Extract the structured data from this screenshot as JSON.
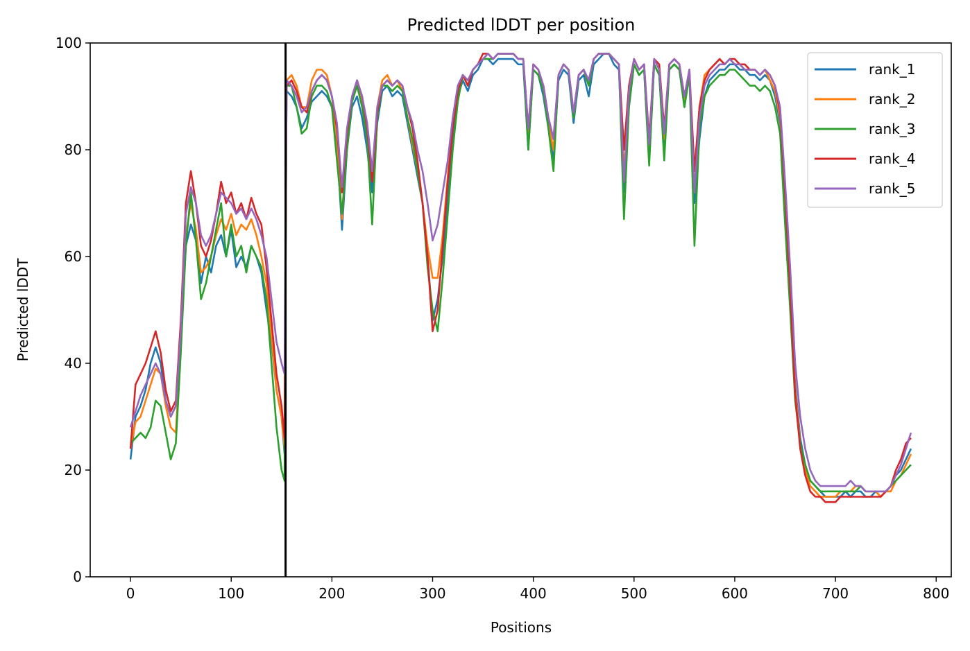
{
  "chart_data": {
    "type": "line",
    "title": "Predicted lDDT per position",
    "xlabel": "Positions",
    "ylabel": "Predicted lDDT",
    "xlim": [
      -40,
      815
    ],
    "ylim": [
      0,
      100
    ],
    "xticks": [
      0,
      100,
      200,
      300,
      400,
      500,
      600,
      700,
      800
    ],
    "yticks": [
      0,
      20,
      40,
      60,
      80,
      100
    ],
    "grid": false,
    "legend_position": "top-right",
    "chain_break_x": 154,
    "x": [
      0,
      5,
      10,
      15,
      20,
      25,
      30,
      35,
      40,
      45,
      50,
      55,
      60,
      65,
      70,
      75,
      80,
      85,
      90,
      95,
      100,
      105,
      110,
      115,
      120,
      125,
      130,
      135,
      140,
      145,
      150,
      153,
      155,
      160,
      165,
      170,
      175,
      180,
      185,
      190,
      195,
      200,
      205,
      210,
      215,
      220,
      225,
      230,
      235,
      240,
      245,
      250,
      255,
      260,
      265,
      270,
      275,
      280,
      285,
      290,
      295,
      300,
      305,
      310,
      315,
      320,
      325,
      330,
      335,
      340,
      345,
      350,
      355,
      360,
      365,
      370,
      375,
      380,
      385,
      390,
      395,
      400,
      405,
      410,
      415,
      420,
      425,
      430,
      435,
      440,
      445,
      450,
      455,
      460,
      465,
      470,
      475,
      480,
      485,
      490,
      495,
      500,
      505,
      510,
      515,
      520,
      525,
      530,
      535,
      540,
      545,
      550,
      555,
      560,
      565,
      570,
      575,
      580,
      585,
      590,
      595,
      600,
      605,
      610,
      615,
      620,
      625,
      630,
      635,
      640,
      645,
      650,
      655,
      660,
      665,
      670,
      675,
      680,
      685,
      690,
      695,
      700,
      705,
      710,
      715,
      720,
      725,
      730,
      735,
      740,
      745,
      750,
      755,
      760,
      765,
      770,
      775
    ],
    "series": [
      {
        "name": "rank_1",
        "color": "#1f77b4",
        "values": [
          22,
          30,
          32,
          35,
          40,
          43,
          40,
          33,
          30,
          32,
          45,
          62,
          66,
          63,
          55,
          60,
          57,
          62,
          64,
          60,
          65,
          58,
          60,
          58,
          62,
          60,
          57,
          50,
          44,
          35,
          30,
          23,
          91,
          90,
          88,
          84,
          86,
          89,
          90,
          91,
          90,
          88,
          81,
          65,
          80,
          88,
          90,
          86,
          80,
          72,
          85,
          91,
          92,
          90,
          91,
          90,
          85,
          80,
          75,
          70,
          60,
          48,
          52,
          60,
          70,
          82,
          90,
          93,
          91,
          94,
          95,
          97,
          97,
          96,
          97,
          97,
          97,
          97,
          96,
          96,
          80,
          95,
          94,
          90,
          84,
          78,
          93,
          95,
          94,
          85,
          93,
          94,
          90,
          96,
          97,
          98,
          98,
          96,
          95,
          72,
          88,
          96,
          94,
          95,
          78,
          96,
          94,
          80,
          95,
          96,
          95,
          88,
          94,
          70,
          82,
          90,
          93,
          94,
          95,
          95,
          96,
          96,
          95,
          95,
          94,
          94,
          93,
          94,
          93,
          90,
          85,
          70,
          55,
          36,
          26,
          21,
          18,
          17,
          16,
          15,
          15,
          15,
          15,
          16,
          15,
          16,
          16,
          15,
          15,
          16,
          15,
          16,
          17,
          19,
          20,
          22,
          24
        ]
      },
      {
        "name": "rank_2",
        "color": "#ff7f0e",
        "values": [
          24,
          29,
          30,
          33,
          36,
          39,
          38,
          32,
          28,
          27,
          44,
          64,
          70,
          65,
          57,
          58,
          60,
          64,
          67,
          65,
          68,
          64,
          66,
          65,
          67,
          64,
          60,
          55,
          45,
          35,
          30,
          24,
          93,
          94,
          92,
          88,
          88,
          93,
          95,
          95,
          94,
          90,
          82,
          67,
          82,
          90,
          93,
          89,
          83,
          75,
          88,
          93,
          94,
          92,
          93,
          91,
          86,
          81,
          76,
          70,
          62,
          56,
          56,
          64,
          75,
          85,
          91,
          94,
          93,
          95,
          96,
          97,
          98,
          97,
          98,
          98,
          98,
          98,
          97,
          97,
          82,
          96,
          95,
          91,
          85,
          80,
          94,
          96,
          95,
          86,
          94,
          95,
          92,
          97,
          98,
          98,
          98,
          97,
          96,
          76,
          90,
          97,
          95,
          96,
          80,
          97,
          95,
          82,
          96,
          97,
          96,
          89,
          95,
          72,
          88,
          94,
          95,
          96,
          97,
          96,
          97,
          96,
          96,
          95,
          95,
          95,
          94,
          95,
          93,
          91,
          86,
          72,
          55,
          35,
          25,
          20,
          17,
          16,
          15,
          15,
          15,
          15,
          16,
          16,
          16,
          17,
          17,
          16,
          16,
          16,
          15,
          16,
          16,
          18,
          19,
          21,
          23
        ]
      },
      {
        "name": "rank_3",
        "color": "#2ca02c",
        "values": [
          25,
          26,
          27,
          26,
          28,
          33,
          32,
          27,
          22,
          25,
          42,
          62,
          72,
          63,
          52,
          55,
          60,
          65,
          70,
          60,
          66,
          60,
          62,
          57,
          62,
          60,
          58,
          52,
          40,
          28,
          20,
          18,
          92,
          92,
          88,
          83,
          84,
          90,
          92,
          92,
          91,
          88,
          78,
          68,
          80,
          89,
          92,
          88,
          82,
          66,
          86,
          92,
          92,
          91,
          92,
          91,
          86,
          82,
          76,
          70,
          58,
          50,
          46,
          56,
          68,
          80,
          89,
          94,
          92,
          95,
          96,
          97,
          97,
          97,
          98,
          98,
          98,
          98,
          97,
          97,
          80,
          95,
          94,
          91,
          84,
          76,
          94,
          96,
          95,
          86,
          94,
          95,
          92,
          97,
          98,
          98,
          98,
          97,
          96,
          67,
          88,
          96,
          94,
          95,
          77,
          96,
          94,
          78,
          95,
          96,
          95,
          88,
          94,
          62,
          84,
          90,
          92,
          93,
          94,
          94,
          95,
          95,
          94,
          93,
          92,
          92,
          91,
          92,
          91,
          88,
          83,
          66,
          50,
          33,
          25,
          21,
          18,
          17,
          16,
          16,
          16,
          16,
          16,
          16,
          16,
          16,
          17,
          16,
          16,
          16,
          16,
          16,
          17,
          18,
          19,
          20,
          21
        ]
      },
      {
        "name": "rank_4",
        "color": "#d62728",
        "values": [
          24,
          36,
          38,
          40,
          43,
          46,
          42,
          35,
          31,
          33,
          48,
          70,
          76,
          70,
          62,
          60,
          63,
          68,
          74,
          70,
          72,
          68,
          70,
          67,
          71,
          68,
          66,
          58,
          48,
          38,
          32,
          26,
          92,
          93,
          91,
          88,
          87,
          91,
          93,
          94,
          93,
          90,
          84,
          72,
          83,
          90,
          93,
          90,
          84,
          74,
          87,
          92,
          93,
          92,
          93,
          92,
          88,
          84,
          78,
          70,
          60,
          46,
          50,
          62,
          74,
          84,
          91,
          94,
          92,
          95,
          96,
          98,
          98,
          97,
          98,
          98,
          98,
          98,
          97,
          97,
          84,
          96,
          95,
          92,
          86,
          82,
          94,
          96,
          95,
          87,
          94,
          95,
          93,
          97,
          98,
          98,
          98,
          97,
          96,
          80,
          92,
          97,
          95,
          96,
          82,
          97,
          96,
          84,
          96,
          97,
          96,
          90,
          95,
          76,
          88,
          93,
          95,
          96,
          97,
          96,
          97,
          97,
          96,
          96,
          95,
          95,
          94,
          95,
          94,
          92,
          87,
          72,
          54,
          34,
          24,
          19,
          16,
          15,
          15,
          14,
          14,
          14,
          15,
          15,
          15,
          15,
          15,
          15,
          15,
          15,
          15,
          16,
          17,
          20,
          22,
          25,
          26
        ]
      },
      {
        "name": "rank_5",
        "color": "#9467bd",
        "values": [
          28,
          31,
          34,
          36,
          38,
          40,
          38,
          33,
          30,
          32,
          46,
          68,
          73,
          70,
          64,
          62,
          64,
          68,
          72,
          71,
          70,
          68,
          69,
          67,
          69,
          67,
          64,
          60,
          52,
          44,
          40,
          38,
          93,
          92,
          90,
          87,
          88,
          91,
          93,
          94,
          93,
          90,
          85,
          73,
          84,
          90,
          93,
          90,
          85,
          76,
          88,
          92,
          93,
          92,
          93,
          92,
          88,
          85,
          80,
          76,
          70,
          63,
          66,
          72,
          78,
          86,
          92,
          94,
          93,
          95,
          96,
          97,
          98,
          97,
          98,
          98,
          98,
          98,
          97,
          97,
          84,
          96,
          95,
          92,
          86,
          82,
          94,
          96,
          95,
          87,
          94,
          95,
          93,
          97,
          98,
          98,
          98,
          97,
          96,
          74,
          91,
          97,
          95,
          96,
          81,
          97,
          95,
          83,
          96,
          97,
          96,
          90,
          95,
          72,
          86,
          92,
          94,
          95,
          96,
          96,
          97,
          96,
          96,
          95,
          95,
          95,
          94,
          95,
          94,
          92,
          88,
          74,
          58,
          40,
          30,
          24,
          20,
          18,
          17,
          17,
          17,
          17,
          17,
          17,
          18,
          17,
          17,
          16,
          16,
          16,
          16,
          16,
          17,
          19,
          21,
          24,
          27
        ]
      }
    ]
  }
}
